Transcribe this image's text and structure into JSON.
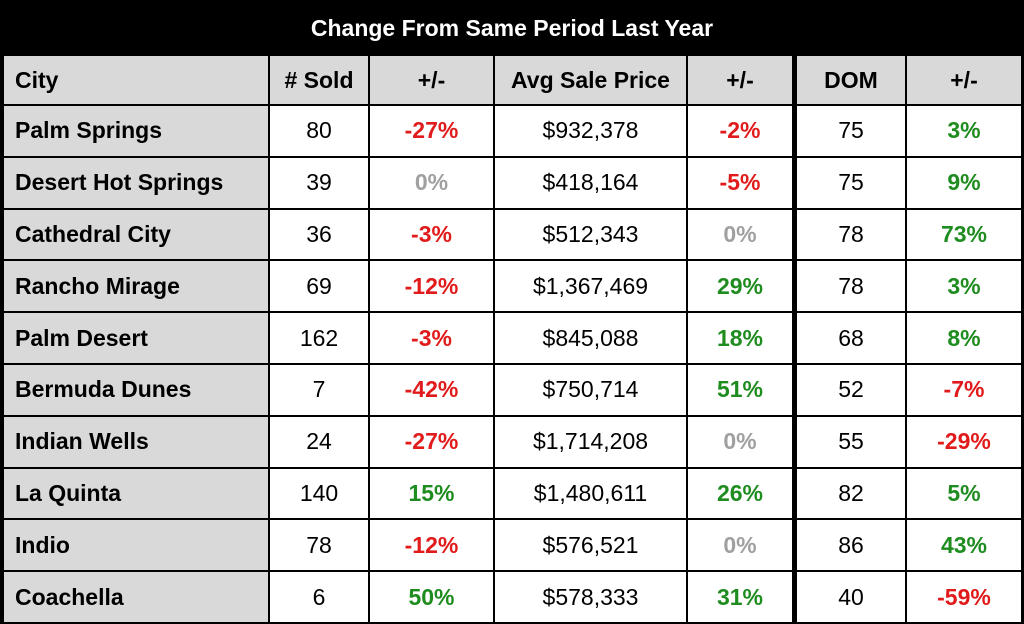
{
  "title": "Change From Same Period Last Year",
  "headers": {
    "city": "City",
    "sold": "# Sold",
    "sold_change": "+/-",
    "price": "Avg Sale Price",
    "price_change": "+/-",
    "dom": "DOM",
    "dom_change": "+/-"
  },
  "colors": {
    "negative": "#e11b1b",
    "positive": "#1f8c1f",
    "zero": "#a0a0a0"
  },
  "rows": [
    {
      "city": "Palm Springs",
      "sold": "80",
      "sold_change": "-27%",
      "price": "$932,378",
      "price_change": "-2%",
      "dom": "75",
      "dom_change": "3%"
    },
    {
      "city": "Desert Hot Springs",
      "sold": "39",
      "sold_change": "0%",
      "price": "$418,164",
      "price_change": "-5%",
      "dom": "75",
      "dom_change": "9%"
    },
    {
      "city": "Cathedral City",
      "sold": "36",
      "sold_change": "-3%",
      "price": "$512,343",
      "price_change": "0%",
      "dom": "78",
      "dom_change": "73%"
    },
    {
      "city": "Rancho Mirage",
      "sold": "69",
      "sold_change": "-12%",
      "price": "$1,367,469",
      "price_change": "29%",
      "dom": "78",
      "dom_change": "3%"
    },
    {
      "city": "Palm Desert",
      "sold": "162",
      "sold_change": "-3%",
      "price": "$845,088",
      "price_change": "18%",
      "dom": "68",
      "dom_change": "8%"
    },
    {
      "city": "Bermuda Dunes",
      "sold": "7",
      "sold_change": "-42%",
      "price": "$750,714",
      "price_change": "51%",
      "dom": "52",
      "dom_change": "-7%"
    },
    {
      "city": "Indian Wells",
      "sold": "24",
      "sold_change": "-27%",
      "price": "$1,714,208",
      "price_change": "0%",
      "dom": "55",
      "dom_change": "-29%"
    },
    {
      "city": "La Quinta",
      "sold": "140",
      "sold_change": "15%",
      "price": "$1,480,611",
      "price_change": "26%",
      "dom": "82",
      "dom_change": "5%"
    },
    {
      "city": "Indio",
      "sold": "78",
      "sold_change": "-12%",
      "price": "$576,521",
      "price_change": "0%",
      "dom": "86",
      "dom_change": "43%"
    },
    {
      "city": "Coachella",
      "sold": "6",
      "sold_change": "50%",
      "price": "$578,333",
      "price_change": "31%",
      "dom": "40",
      "dom_change": "-59%"
    }
  ]
}
